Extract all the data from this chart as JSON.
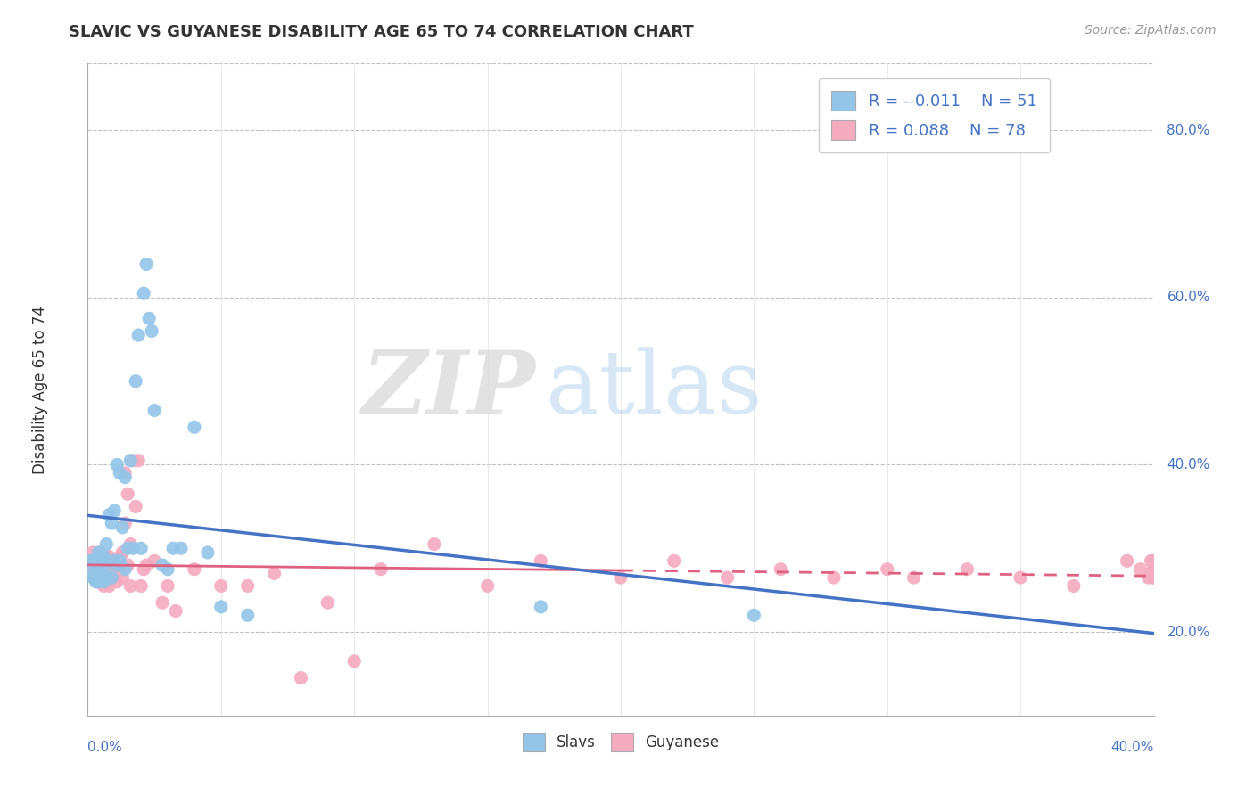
{
  "title": "SLAVIC VS GUYANESE DISABILITY AGE 65 TO 74 CORRELATION CHART",
  "source": "Source: ZipAtlas.com",
  "ylabel": "Disability Age 65 to 74",
  "ylabel_tick_vals": [
    0.2,
    0.4,
    0.6,
    0.8
  ],
  "xlim": [
    0.0,
    0.4
  ],
  "ylim": [
    0.1,
    0.88
  ],
  "slavs_color": "#92C5E8",
  "guyanese_color": "#F4AABF",
  "slavs_line_color": "#4472C4",
  "guyanese_line_color": "#E06080",
  "watermark_zip": "ZIP",
  "watermark_atlas": "atlas",
  "legend_r_slavs": "-0.011",
  "legend_n_slavs": "51",
  "legend_r_guyanese": "0.088",
  "legend_n_guyanese": "78",
  "slavs_x": [
    0.001,
    0.001,
    0.002,
    0.002,
    0.003,
    0.003,
    0.003,
    0.004,
    0.004,
    0.004,
    0.005,
    0.005,
    0.005,
    0.006,
    0.006,
    0.007,
    0.007,
    0.007,
    0.008,
    0.009,
    0.009,
    0.01,
    0.01,
    0.011,
    0.011,
    0.012,
    0.012,
    0.013,
    0.014,
    0.014,
    0.015,
    0.016,
    0.017,
    0.018,
    0.019,
    0.02,
    0.021,
    0.022,
    0.023,
    0.024,
    0.025,
    0.028,
    0.03,
    0.032,
    0.035,
    0.04,
    0.045,
    0.05,
    0.06,
    0.17,
    0.25
  ],
  "slavs_y": [
    0.285,
    0.27,
    0.285,
    0.265,
    0.285,
    0.27,
    0.26,
    0.295,
    0.275,
    0.26,
    0.29,
    0.285,
    0.265,
    0.29,
    0.26,
    0.305,
    0.28,
    0.265,
    0.34,
    0.33,
    0.265,
    0.345,
    0.285,
    0.4,
    0.28,
    0.39,
    0.285,
    0.325,
    0.385,
    0.275,
    0.3,
    0.405,
    0.3,
    0.5,
    0.555,
    0.3,
    0.605,
    0.64,
    0.575,
    0.56,
    0.465,
    0.28,
    0.275,
    0.3,
    0.3,
    0.445,
    0.295,
    0.23,
    0.22,
    0.23,
    0.22
  ],
  "guyanese_x": [
    0.001,
    0.001,
    0.002,
    0.002,
    0.003,
    0.003,
    0.004,
    0.004,
    0.004,
    0.005,
    0.005,
    0.005,
    0.006,
    0.006,
    0.006,
    0.007,
    0.007,
    0.007,
    0.008,
    0.008,
    0.008,
    0.009,
    0.009,
    0.01,
    0.01,
    0.011,
    0.011,
    0.011,
    0.012,
    0.012,
    0.013,
    0.013,
    0.014,
    0.014,
    0.015,
    0.015,
    0.016,
    0.016,
    0.017,
    0.018,
    0.019,
    0.02,
    0.021,
    0.022,
    0.025,
    0.028,
    0.03,
    0.033,
    0.04,
    0.05,
    0.06,
    0.07,
    0.08,
    0.09,
    0.1,
    0.11,
    0.13,
    0.15,
    0.17,
    0.2,
    0.22,
    0.24,
    0.26,
    0.28,
    0.3,
    0.31,
    0.33,
    0.35,
    0.37,
    0.39,
    0.395,
    0.398,
    0.399,
    0.4,
    0.4,
    0.4,
    0.4,
    0.4
  ],
  "guyanese_y": [
    0.285,
    0.27,
    0.27,
    0.295,
    0.285,
    0.265,
    0.28,
    0.27,
    0.26,
    0.295,
    0.275,
    0.26,
    0.28,
    0.275,
    0.255,
    0.29,
    0.28,
    0.265,
    0.29,
    0.275,
    0.255,
    0.28,
    0.27,
    0.28,
    0.265,
    0.285,
    0.27,
    0.26,
    0.29,
    0.275,
    0.295,
    0.265,
    0.39,
    0.33,
    0.365,
    0.28,
    0.305,
    0.255,
    0.405,
    0.35,
    0.405,
    0.255,
    0.275,
    0.28,
    0.285,
    0.235,
    0.255,
    0.225,
    0.275,
    0.255,
    0.255,
    0.27,
    0.145,
    0.235,
    0.165,
    0.275,
    0.305,
    0.255,
    0.285,
    0.265,
    0.285,
    0.265,
    0.275,
    0.265,
    0.275,
    0.265,
    0.275,
    0.265,
    0.255,
    0.285,
    0.275,
    0.265,
    0.285,
    0.275,
    0.265,
    0.285,
    0.275,
    0.265
  ]
}
